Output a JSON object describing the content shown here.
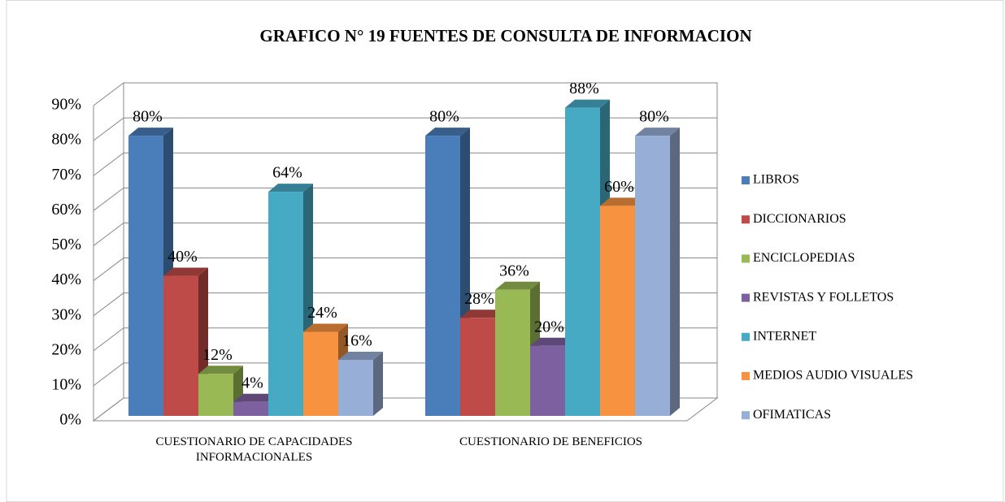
{
  "chart_data": {
    "type": "bar3d",
    "title": "GRAFICO N° 19  FUENTES DE CONSULTA DE INFORMACION",
    "categories": [
      "CUESTIONARIO DE CAPACIDADES INFORMACIONALES",
      "CUESTIONARIO DE BENEFICIOS"
    ],
    "series": [
      {
        "name": "LIBROS",
        "color": "#4a7ebb",
        "values": [
          80,
          80
        ],
        "value_labels": [
          "80%",
          "80%"
        ]
      },
      {
        "name": "DICCIONARIOS",
        "color": "#be4b48",
        "values": [
          40,
          28
        ],
        "value_labels": [
          "40%",
          "28%"
        ]
      },
      {
        "name": "ENCICLOPEDIAS",
        "color": "#98b954",
        "values": [
          12,
          36
        ],
        "value_labels": [
          "12%",
          "36%"
        ]
      },
      {
        "name": "REVISTAS Y FOLLETOS",
        "color": "#7d60a0",
        "values": [
          4,
          20
        ],
        "value_labels": [
          "4%",
          "20%"
        ]
      },
      {
        "name": "INTERNET",
        "color": "#46aac5",
        "values": [
          64,
          88
        ],
        "value_labels": [
          "64%",
          "88%"
        ]
      },
      {
        "name": "MEDIOS AUDIO VISUALES",
        "color": "#f69240",
        "values": [
          24,
          60
        ],
        "value_labels": [
          "24%",
          "60%"
        ]
      },
      {
        "name": "OFIMATICAS",
        "color": "#97aed6",
        "values": [
          16,
          80
        ],
        "value_labels": [
          "16%",
          "80%"
        ]
      }
    ],
    "ylim": [
      0,
      90
    ],
    "yticks": [
      {
        "value": 0,
        "label": "0%"
      },
      {
        "value": 10,
        "label": "10%"
      },
      {
        "value": 20,
        "label": "20%"
      },
      {
        "value": 30,
        "label": "30%"
      },
      {
        "value": 40,
        "label": "40%"
      },
      {
        "value": 50,
        "label": "50%"
      },
      {
        "value": 60,
        "label": "60%"
      },
      {
        "value": 70,
        "label": "70%"
      },
      {
        "value": 80,
        "label": "80%"
      },
      {
        "value": 90,
        "label": "90%"
      }
    ],
    "grid": true,
    "legend": "right"
  }
}
